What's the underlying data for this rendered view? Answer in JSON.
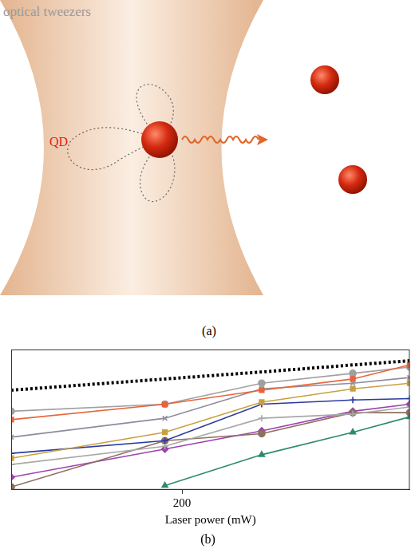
{
  "diagram": {
    "label": "optical tweezers",
    "particle_label": "QD",
    "caption": "(a)"
  },
  "chart_data": {
    "type": "line",
    "title": "(b)",
    "x_label": "Laser power (mW)",
    "x": [
      50,
      185,
      270,
      350,
      400
    ],
    "xlim": [
      50,
      400
    ],
    "xticks": [
      200
    ],
    "ylim": [
      0,
      10
    ],
    "tick_labels": "x",
    "grid": false,
    "series": [
      {
        "color": "#000000",
        "marker": "none",
        "line_style": "dotted",
        "values": [
          7.1,
          7.9,
          8.4,
          8.9,
          9.2
        ]
      },
      {
        "color": "#e8643c",
        "marker": "square",
        "line_style": "solid",
        "values": [
          5.0,
          6.1,
          7.1,
          7.9,
          8.9
        ]
      },
      {
        "color": "#a0a0a0",
        "marker": "circle",
        "line_style": "solid",
        "values": [
          5.6,
          6.1,
          7.6,
          8.3,
          8.75
        ]
      },
      {
        "color": "#8c8c9c",
        "marker": "x",
        "line_style": "solid",
        "values": [
          3.75,
          5.1,
          7.2,
          7.6,
          8.0
        ]
      },
      {
        "color": "#c8a040",
        "marker": "square",
        "line_style": "solid",
        "values": [
          2.25,
          4.1,
          6.25,
          7.2,
          7.6
        ]
      },
      {
        "color": "#2a3aa0",
        "marker": "plus",
        "line_style": "solid",
        "values": [
          2.6,
          3.5,
          6.1,
          6.4,
          6.5
        ]
      },
      {
        "color": "#a8a8a8",
        "marker": "plus",
        "line_style": "solid",
        "values": [
          1.8,
          3.1,
          5.1,
          5.4,
          5.9
        ]
      },
      {
        "color": "#8c7060",
        "marker": "circle",
        "line_style": "solid",
        "values": [
          0.2,
          3.5,
          4.0,
          5.5,
          5.5
        ]
      },
      {
        "color": "#a040b0",
        "marker": "diamond",
        "line_style": "solid",
        "values": [
          0.9,
          2.9,
          4.2,
          5.6,
          6.1
        ]
      },
      {
        "color": "#2e8a6e",
        "marker": "triangle",
        "line_style": "solid",
        "values": [
          null,
          0.3,
          2.5,
          4.1,
          5.2
        ]
      }
    ]
  }
}
